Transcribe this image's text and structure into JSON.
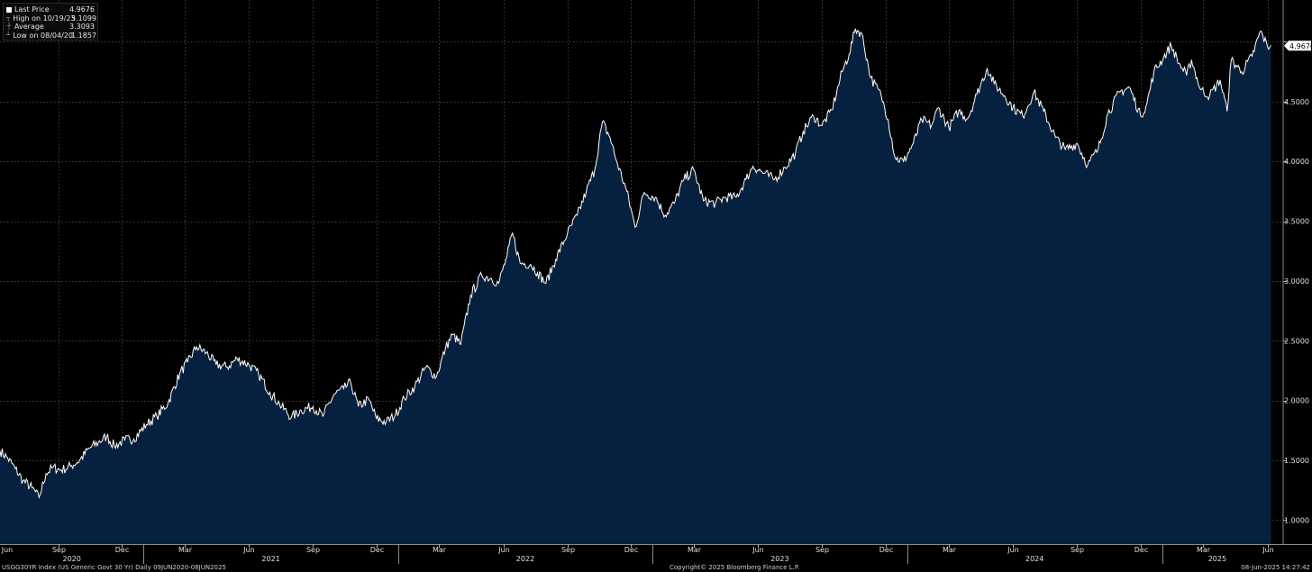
{
  "legend": {
    "last_price_label": "Last Price",
    "last_price_value": "4.9676",
    "high_label": "High on 10/19/23",
    "high_value": "5.1099",
    "average_label": "Average",
    "average_value": "3.3093",
    "low_label": "Low on 08/04/20",
    "low_value": "1.1857"
  },
  "last_price_tag": "4.9676",
  "footer": {
    "left": "USGG30YR Index (US Generic Govt 30 Yr)  Daily 09JUN2020-08JUN2025",
    "center": "Copyright© 2025 Bloomberg Finance L.P.",
    "right": "08-Jun-2025 14:27:42"
  },
  "colors": {
    "background": "#000000",
    "fill": "#06213f",
    "line": "#ffffff",
    "grid": "#5a5a5a"
  },
  "chart_data": {
    "type": "area",
    "series": [
      {
        "name": "Last Price",
        "points": [
          [
            "2020-06-09",
            1.58
          ],
          [
            "2020-06-20",
            1.52
          ],
          [
            "2020-07-01",
            1.43
          ],
          [
            "2020-07-12",
            1.33
          ],
          [
            "2020-07-25",
            1.27
          ],
          [
            "2020-08-04",
            1.19
          ],
          [
            "2020-08-14",
            1.39
          ],
          [
            "2020-08-24",
            1.44
          ],
          [
            "2020-09-05",
            1.42
          ],
          [
            "2020-09-18",
            1.45
          ],
          [
            "2020-10-01",
            1.5
          ],
          [
            "2020-10-15",
            1.6
          ],
          [
            "2020-10-28",
            1.65
          ],
          [
            "2020-11-09",
            1.7
          ],
          [
            "2020-11-20",
            1.62
          ],
          [
            "2020-12-05",
            1.67
          ],
          [
            "2020-12-18",
            1.68
          ],
          [
            "2021-01-05",
            1.8
          ],
          [
            "2021-01-20",
            1.87
          ],
          [
            "2021-02-05",
            1.98
          ],
          [
            "2021-02-22",
            2.23
          ],
          [
            "2021-03-05",
            2.32
          ],
          [
            "2021-03-18",
            2.45
          ],
          [
            "2021-04-01",
            2.4
          ],
          [
            "2021-04-15",
            2.3
          ],
          [
            "2021-05-01",
            2.28
          ],
          [
            "2021-05-15",
            2.35
          ],
          [
            "2021-06-01",
            2.3
          ],
          [
            "2021-06-15",
            2.22
          ],
          [
            "2021-07-01",
            2.07
          ],
          [
            "2021-07-15",
            1.97
          ],
          [
            "2021-08-01",
            1.86
          ],
          [
            "2021-08-15",
            1.92
          ],
          [
            "2021-09-01",
            1.95
          ],
          [
            "2021-09-15",
            1.87
          ],
          [
            "2021-10-01",
            2.05
          ],
          [
            "2021-10-15",
            2.1
          ],
          [
            "2021-10-25",
            2.15
          ],
          [
            "2021-11-05",
            1.95
          ],
          [
            "2021-11-20",
            2.01
          ],
          [
            "2021-12-01",
            1.85
          ],
          [
            "2021-12-15",
            1.82
          ],
          [
            "2021-12-28",
            1.88
          ],
          [
            "2022-01-10",
            2.02
          ],
          [
            "2022-01-25",
            2.12
          ],
          [
            "2022-02-10",
            2.28
          ],
          [
            "2022-02-25",
            2.2
          ],
          [
            "2022-03-10",
            2.44
          ],
          [
            "2022-03-20",
            2.55
          ],
          [
            "2022-04-01",
            2.47
          ],
          [
            "2022-04-15",
            2.88
          ],
          [
            "2022-05-01",
            3.05
          ],
          [
            "2022-05-15",
            3.02
          ],
          [
            "2022-05-25",
            2.98
          ],
          [
            "2022-06-06",
            3.2
          ],
          [
            "2022-06-14",
            3.4
          ],
          [
            "2022-06-25",
            3.15
          ],
          [
            "2022-07-10",
            3.14
          ],
          [
            "2022-07-20",
            3.07
          ],
          [
            "2022-08-01",
            2.98
          ],
          [
            "2022-08-15",
            3.18
          ],
          [
            "2022-09-01",
            3.4
          ],
          [
            "2022-09-15",
            3.55
          ],
          [
            "2022-09-28",
            3.75
          ],
          [
            "2022-10-10",
            3.93
          ],
          [
            "2022-10-21",
            4.33
          ],
          [
            "2022-11-01",
            4.2
          ],
          [
            "2022-11-10",
            4.01
          ],
          [
            "2022-11-25",
            3.75
          ],
          [
            "2022-12-07",
            3.45
          ],
          [
            "2022-12-20",
            3.74
          ],
          [
            "2023-01-05",
            3.7
          ],
          [
            "2023-01-19",
            3.55
          ],
          [
            "2023-02-01",
            3.65
          ],
          [
            "2023-02-15",
            3.85
          ],
          [
            "2023-03-01",
            3.93
          ],
          [
            "2023-03-15",
            3.67
          ],
          [
            "2023-04-01",
            3.65
          ],
          [
            "2023-04-15",
            3.7
          ],
          [
            "2023-05-01",
            3.7
          ],
          [
            "2023-05-15",
            3.85
          ],
          [
            "2023-05-25",
            3.96
          ],
          [
            "2023-06-10",
            3.9
          ],
          [
            "2023-06-25",
            3.85
          ],
          [
            "2023-07-10",
            3.95
          ],
          [
            "2023-07-25",
            4.07
          ],
          [
            "2023-08-05",
            4.25
          ],
          [
            "2023-08-20",
            4.38
          ],
          [
            "2023-09-01",
            4.3
          ],
          [
            "2023-09-15",
            4.43
          ],
          [
            "2023-09-30",
            4.75
          ],
          [
            "2023-10-10",
            4.9
          ],
          [
            "2023-10-19",
            5.11
          ],
          [
            "2023-10-28",
            5.07
          ],
          [
            "2023-11-10",
            4.7
          ],
          [
            "2023-11-25",
            4.55
          ],
          [
            "2023-12-05",
            4.35
          ],
          [
            "2023-12-15",
            4.03
          ],
          [
            "2023-12-27",
            4.0
          ],
          [
            "2024-01-10",
            4.15
          ],
          [
            "2024-01-22",
            4.35
          ],
          [
            "2024-02-05",
            4.3
          ],
          [
            "2024-02-15",
            4.45
          ],
          [
            "2024-03-01",
            4.28
          ],
          [
            "2024-03-15",
            4.42
          ],
          [
            "2024-03-28",
            4.36
          ],
          [
            "2024-04-10",
            4.56
          ],
          [
            "2024-04-25",
            4.78
          ],
          [
            "2024-05-05",
            4.65
          ],
          [
            "2024-05-20",
            4.55
          ],
          [
            "2024-06-01",
            4.45
          ],
          [
            "2024-06-15",
            4.38
          ],
          [
            "2024-07-01",
            4.58
          ],
          [
            "2024-07-15",
            4.42
          ],
          [
            "2024-08-01",
            4.2
          ],
          [
            "2024-08-15",
            4.1
          ],
          [
            "2024-09-01",
            4.15
          ],
          [
            "2024-09-16",
            3.97
          ],
          [
            "2024-10-01",
            4.1
          ],
          [
            "2024-10-15",
            4.4
          ],
          [
            "2024-11-01",
            4.58
          ],
          [
            "2024-11-15",
            4.62
          ],
          [
            "2024-12-01",
            4.38
          ],
          [
            "2024-12-10",
            4.48
          ],
          [
            "2024-12-20",
            4.75
          ],
          [
            "2025-01-03",
            4.87
          ],
          [
            "2025-01-14",
            4.97
          ],
          [
            "2025-01-25",
            4.82
          ],
          [
            "2025-02-05",
            4.72
          ],
          [
            "2025-02-12",
            4.85
          ],
          [
            "2025-02-25",
            4.6
          ],
          [
            "2025-03-10",
            4.55
          ],
          [
            "2025-03-25",
            4.68
          ],
          [
            "2025-04-04",
            4.42
          ],
          [
            "2025-04-10",
            4.85
          ],
          [
            "2025-04-25",
            4.75
          ],
          [
            "2025-05-10",
            4.88
          ],
          [
            "2025-05-22",
            5.09
          ],
          [
            "2025-06-01",
            4.96
          ],
          [
            "2025-06-06",
            4.97
          ]
        ]
      }
    ],
    "x_range": [
      "2020-06-09",
      "2025-06-08"
    ],
    "ylim": [
      0.8,
      5.35
    ],
    "y_ticks": [
      "1.0000",
      "1.5000",
      "2.0000",
      "2.5000",
      "3.0000",
      "3.5000",
      "4.0000",
      "4.5000"
    ],
    "month_ticks": [
      "Jun",
      "Sep",
      "Dec",
      "Mar",
      "Jun",
      "Sep",
      "Dec",
      "Mar",
      "Jun",
      "Sep",
      "Dec",
      "Mar",
      "Jun",
      "Sep",
      "Dec",
      "Mar",
      "Jun",
      "Sep",
      "Dec",
      "Mar",
      "Jun"
    ],
    "month_tick_dates": [
      "2020-06",
      "2020-09",
      "2020-12",
      "2021-03",
      "2021-06",
      "2021-09",
      "2021-12",
      "2022-03",
      "2022-06",
      "2022-09",
      "2022-12",
      "2023-03",
      "2023-06",
      "2023-09",
      "2023-12",
      "2024-03",
      "2024-06",
      "2024-09",
      "2024-12",
      "2025-03",
      "2025-06"
    ],
    "year_ticks": [
      "2020",
      "2021",
      "2022",
      "2023",
      "2024",
      "2025"
    ],
    "grid": true,
    "legend_position": "top-left"
  }
}
